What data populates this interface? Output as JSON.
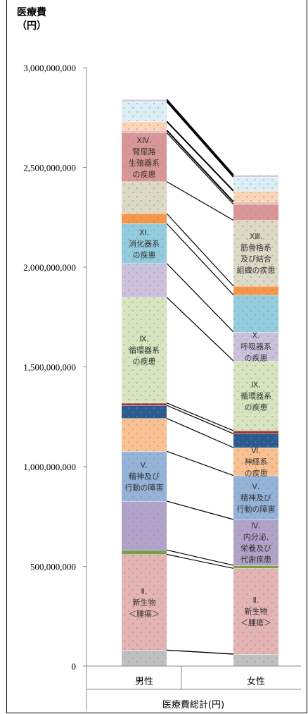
{
  "chart_data": {
    "type": "bar",
    "stacked": true,
    "ylabel": "医療費\n（円）",
    "xlabel": "医療費総計(円)",
    "categories": [
      "男性",
      "女性"
    ],
    "ylim": [
      0,
      3000000000
    ],
    "yticks": [
      0,
      500000000,
      1000000000,
      1500000000,
      2000000000,
      2500000000,
      3000000000
    ],
    "ytick_labels": [
      "0",
      "500,000,000",
      "1,000,000,000",
      "1,500,000,000",
      "2,000,000,000",
      "2,500,000,000",
      "3,000,000,000"
    ],
    "grid": false,
    "legend": "none",
    "series": [
      {
        "name": "",
        "values": [
          80000000,
          60000000
        ],
        "color": "#c0c0c0"
      },
      {
        "name": "",
        "values": [
          480000000,
          430000000
        ],
        "color": "#e6b3b3",
        "label": "Ⅱ.\n新生物\n＜腫瘍＞"
      },
      {
        "name": "",
        "values": [
          22000000,
          15000000
        ],
        "color": "#7a9e4a"
      },
      {
        "name": "",
        "values": [
          245000000,
          230000000
        ],
        "color": "#b3a2c7",
        "label_female": "Ⅳ.\n内分泌,\n栄養及び\n代謝疾患"
      },
      {
        "name": "",
        "values": [
          250000000,
          220000000
        ],
        "color": "#95b3d7",
        "label": "Ⅴ.\n精神及び\n行動の障害"
      },
      {
        "name": "",
        "values": [
          165000000,
          140000000
        ],
        "color": "#fac090",
        "label_female": "Ⅵ.\n神経系\nの疾患"
      },
      {
        "name": "",
        "values": [
          65000000,
          70000000
        ],
        "color": "#2e5b8f"
      },
      {
        "name": "",
        "values": [
          12000000,
          15000000
        ],
        "color": "#a03535"
      },
      {
        "name": "",
        "values": [
          530000000,
          350000000
        ],
        "color": "#d7e4bd",
        "label": "Ⅸ.\n循環器系\nの疾患"
      },
      {
        "name": "",
        "values": [
          170000000,
          145000000
        ],
        "color": "#ccc1da",
        "label_female": "Ⅹ.\n呼吸器系\nの疾患"
      },
      {
        "name": "",
        "values": [
          200000000,
          185000000
        ],
        "color": "#93cddd",
        "label_male": "ⅩⅠ.\n消化器系\nの疾患"
      },
      {
        "name": "",
        "values": [
          50000000,
          45000000
        ],
        "color": "#f79646"
      },
      {
        "name": "",
        "values": [
          160000000,
          330000000
        ],
        "color": "#ddd9c4",
        "label_female": "ⅩⅢ.\n筋骨格系\n及び結合\n組織の疾患"
      },
      {
        "name": "",
        "values": [
          245000000,
          80000000
        ],
        "color": "#d99694",
        "label_male": "ⅩⅣ.\n腎尿路\n生殖器系\nの疾患"
      },
      {
        "name": "",
        "values": [
          12000000,
          12000000
        ],
        "color": "#e6b9b8"
      },
      {
        "name": "",
        "values": [
          45000000,
          55000000
        ],
        "color": "#fcd5b4"
      },
      {
        "name": "",
        "values": [
          100000000,
          70000000
        ],
        "color": "#dbeef4"
      },
      {
        "name": "",
        "values": [
          10000000,
          10000000
        ],
        "color": "#d0c8e0"
      }
    ]
  }
}
